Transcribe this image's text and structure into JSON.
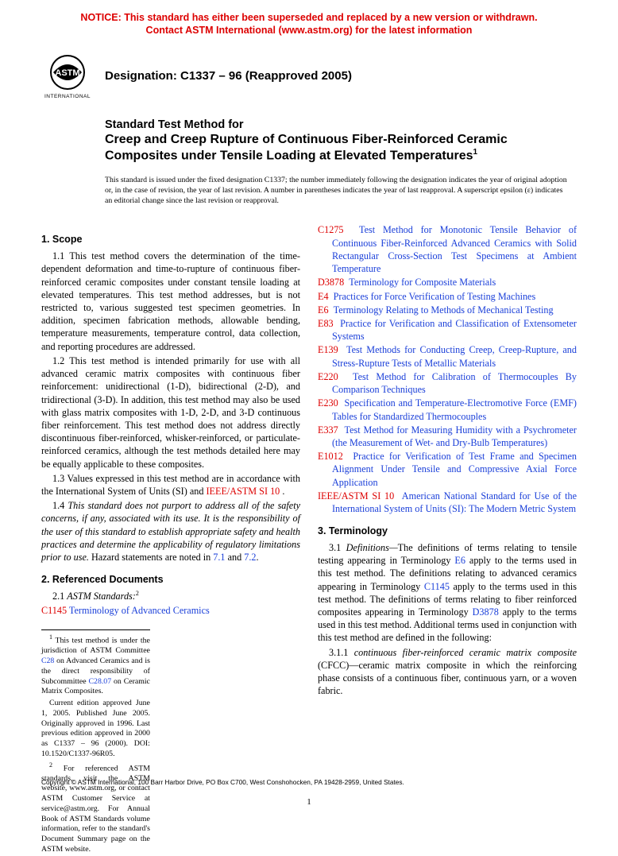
{
  "notice": {
    "line1": "NOTICE: This standard has either been superseded and replaced by a new version or withdrawn.",
    "line2": "Contact ASTM International (www.astm.org) for the latest information"
  },
  "header": {
    "logo_text_top": "ASTM",
    "logo_text_bottom": "INTERNATIONAL",
    "designation": "Designation: C1337 – 96 (Reapproved 2005)"
  },
  "title": {
    "prefix": "Standard Test Method for",
    "main": "Creep and Creep Rupture of Continuous Fiber-Reinforced Ceramic Composites under Tensile Loading at Elevated Temperatures",
    "sup": "1"
  },
  "issue_note": "This standard is issued under the fixed designation C1337; the number immediately following the designation indicates the year of original adoption or, in the case of revision, the year of last revision. A number in parentheses indicates the year of last reapproval. A superscript epsilon (ε) indicates an editorial change since the last revision or reapproval.",
  "sections": {
    "scope_head": "1. Scope",
    "p11": "1.1 This test method covers the determination of the time-dependent deformation and time-to-rupture of continuous fiber-reinforced ceramic composites under constant tensile loading at elevated temperatures. This test method addresses, but is not restricted to, various suggested test specimen geometries. In addition, specimen fabrication methods, allowable bending, temperature measurements, temperature control, data collection, and reporting procedures are addressed.",
    "p12": "1.2 This test method is intended primarily for use with all advanced ceramic matrix composites with continuous fiber reinforcement: unidirectional (1-D), bidirectional (2-D), and tridirectional (3-D). In addition, this test method may also be used with glass matrix composites with 1-D, 2-D, and 3-D continuous fiber reinforcement. This test method does not address directly discontinuous fiber-reinforced, whisker-reinforced, or particulate-reinforced ceramics, although the test methods detailed here may be equally applicable to these composites.",
    "p13_a": "1.3 Values expressed in this test method are in accordance with the International System of Units (SI) and ",
    "p13_link": "IEEE/ASTM SI 10",
    "p13_b": " .",
    "p14_a": "1.4 ",
    "p14_i": "This standard does not purport to address all of the safety concerns, if any, associated with its use. It is the responsibility of the user of this standard to establish appropriate safety and health practices and determine the applicability of regulatory limitations prior to use.",
    "p14_b": " Hazard statements are noted in ",
    "p14_l1": "7.1",
    "p14_and": " and ",
    "p14_l2": "7.2",
    "ref_head": "2. Referenced Documents",
    "p21_a": "2.1 ",
    "p21_i": "ASTM Standards:",
    "p21_sup": "2",
    "ref1_num": "C1145",
    "ref1_txt": "Terminology of Advanced Ceramics",
    "refs": [
      {
        "num": "C1275",
        "txt": "Test Method for Monotonic Tensile Behavior of Continuous Fiber-Reinforced Advanced Ceramics with Solid Rectangular Cross-Section Test Specimens at Ambient Temperature"
      },
      {
        "num": "D3878",
        "txt": "Terminology for Composite Materials"
      },
      {
        "num": "E4",
        "txt": "Practices for Force Verification of Testing Machines"
      },
      {
        "num": "E6",
        "txt": "Terminology Relating to Methods of Mechanical Testing"
      },
      {
        "num": "E83",
        "txt": "Practice for Verification and Classification of Extensometer Systems"
      },
      {
        "num": "E139",
        "txt": "Test Methods for Conducting Creep, Creep-Rupture, and Stress-Rupture Tests of Metallic Materials"
      },
      {
        "num": "E220",
        "txt": "Test Method for Calibration of Thermocouples By Comparison Techniques"
      },
      {
        "num": "E230",
        "txt": "Specification and Temperature-Electromotive Force (EMF) Tables for Standardized Thermocouples"
      },
      {
        "num": "E337",
        "txt": "Test Method for Measuring Humidity with a Psychrometer (the Measurement of Wet- and Dry-Bulb Temperatures)"
      },
      {
        "num": "E1012",
        "txt": "Practice for Verification of Test Frame and Specimen Alignment Under Tensile and Compressive Axial Force Application"
      },
      {
        "num": "IEEE/ASTM SI 10",
        "txt": "American National Standard for Use of the International System of Units (SI): The Modern Metric System"
      }
    ],
    "term_head": "3. Terminology",
    "p31_a": "3.1 ",
    "p31_i": "Definitions—",
    "p31_b": "The definitions of terms relating to tensile testing appearing in Terminology ",
    "p31_l1": "E6",
    "p31_c": " apply to the terms used in this test method. The definitions relating to advanced ceramics appearing in Terminology ",
    "p31_l2": "C1145",
    "p31_d": " apply to the terms used in this test method. The definitions of terms relating to fiber reinforced composites appearing in Terminology ",
    "p31_l3": "D3878",
    "p31_e": " apply to the terms used in this test method. Additional terms used in conjunction with this test method are defined in the following:",
    "p311_a": "3.1.1 ",
    "p311_i": "continuous fiber-reinforced ceramic matrix composite",
    "p311_b": " (CFCC)—ceramic matrix composite in which the reinforcing phase consists of a continuous fiber, continuous yarn, or a woven fabric."
  },
  "footnotes": {
    "f1_a": "This test method is under the jurisdiction of ASTM Committee ",
    "f1_l1": "C28",
    "f1_b": " on Advanced Ceramics and is the direct responsibility of Subcommittee ",
    "f1_l2": "C28.07",
    "f1_c": " on Ceramic Matrix Composites.",
    "f1_d": "Current edition approved June 1, 2005. Published June 2005. Originally approved in 1996. Last previous edition approved in 2000 as C1337 – 96 (2000). DOI: 10.1520/C1337-96R05.",
    "f2": "For referenced ASTM standards, visit the ASTM website, www.astm.org, or contact ASTM Customer Service at service@astm.org. For Annual Book of ASTM Standards volume information, refer to the standard's Document Summary page on the ASTM website."
  },
  "copyright": "Copyright © ASTM International, 100 Barr Harbor Drive, PO Box C700, West Conshohocken, PA 19428-2959, United States.",
  "page_number": "1",
  "colors": {
    "notice_red": "#d00000",
    "link_blue": "#1a3fd9",
    "ref_red": "#d00000"
  }
}
